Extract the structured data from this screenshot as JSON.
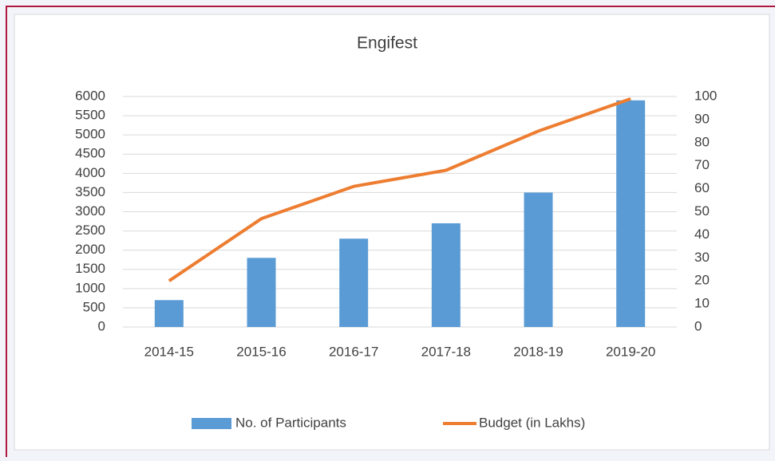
{
  "chart_data": {
    "type": "bar",
    "title": "Engifest",
    "categories": [
      "2014-15",
      "2015-16",
      "2016-17",
      "2017-18",
      "2018-19",
      "2019-20"
    ],
    "series": [
      {
        "name": "No. of Participants",
        "type": "bar",
        "color": "#5b9bd5",
        "values": [
          700,
          1800,
          2300,
          2700,
          3500,
          5900
        ]
      },
      {
        "name": "Budget (in Lakhs)",
        "type": "line",
        "axis": "y2",
        "color": "#ed7d31",
        "values": [
          20,
          47,
          61,
          68,
          85,
          99
        ]
      }
    ],
    "ylim": [
      0,
      6000
    ],
    "yticks": [
      0,
      500,
      1000,
      1500,
      2000,
      2500,
      3000,
      3500,
      4000,
      4500,
      5000,
      5500,
      6000
    ],
    "y2lim": [
      0,
      100
    ],
    "y2ticks": [
      0,
      10,
      20,
      30,
      40,
      50,
      60,
      70,
      80,
      90,
      100
    ],
    "grid": true,
    "legend": "bottom"
  }
}
